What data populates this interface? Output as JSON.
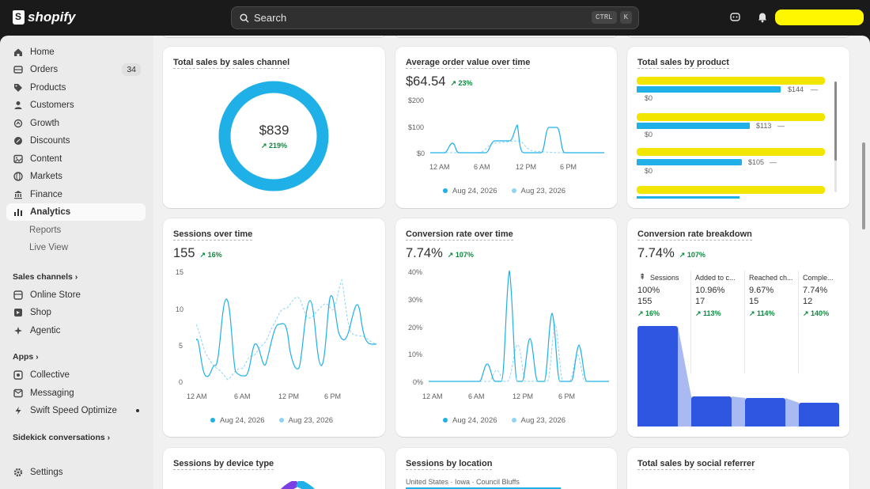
{
  "brand": "shopify",
  "search": {
    "label": "Search",
    "kbd1": "CTRL",
    "kbd2": "K"
  },
  "sidebar": {
    "items": [
      {
        "label": "Home",
        "icon": "home-icon"
      },
      {
        "label": "Orders",
        "icon": "orders-icon",
        "badge": "34"
      },
      {
        "label": "Products",
        "icon": "tag-icon"
      },
      {
        "label": "Customers",
        "icon": "person-icon"
      },
      {
        "label": "Growth",
        "icon": "growth-icon"
      },
      {
        "label": "Discounts",
        "icon": "discount-icon"
      },
      {
        "label": "Content",
        "icon": "content-icon"
      },
      {
        "label": "Markets",
        "icon": "globe-icon"
      },
      {
        "label": "Finance",
        "icon": "bank-icon"
      },
      {
        "label": "Analytics",
        "icon": "chart-icon"
      },
      {
        "label": "Reports"
      },
      {
        "label": "Live View"
      }
    ],
    "sales_channels_title": "Sales channels",
    "channels": [
      {
        "label": "Online Store",
        "icon": "store-icon"
      },
      {
        "label": "Shop",
        "icon": "shop-icon"
      },
      {
        "label": "Agentic",
        "icon": "agentic-icon"
      }
    ],
    "apps_title": "Apps",
    "apps": [
      {
        "label": "Collective",
        "icon": "collective-icon"
      },
      {
        "label": "Messaging",
        "icon": "message-icon"
      },
      {
        "label": "Swift Speed Optimize",
        "icon": "bolt-icon"
      }
    ],
    "sidekick_title": "Sidekick conversations",
    "settings": "Settings"
  },
  "cards": {
    "sales_channel": {
      "title": "Total sales by sales channel",
      "value": "$839",
      "delta": "219%"
    },
    "aov": {
      "title": "Average order value over time",
      "value": "$64.54",
      "delta": "23%",
      "y_ticks": [
        "$200",
        "$100",
        "$0"
      ],
      "x_ticks": [
        "12 AM",
        "6 AM",
        "12 PM",
        "6 PM"
      ],
      "legend": [
        "Aug 24, 2026",
        "Aug 23, 2026"
      ]
    },
    "by_product": {
      "title": "Total sales by product",
      "rows": [
        {
          "value": "$144",
          "prev": "$0",
          "fill": 1.0
        },
        {
          "value": "$113",
          "prev": "$0",
          "fill": 0.78
        },
        {
          "value": "$105",
          "prev": "$0",
          "fill": 0.73
        }
      ]
    },
    "sessions": {
      "title": "Sessions over time",
      "value": "155",
      "delta": "16%",
      "y_ticks": [
        "15",
        "10",
        "5",
        "0"
      ],
      "x_ticks": [
        "12 AM",
        "6 AM",
        "12 PM",
        "6 PM"
      ],
      "legend": [
        "Aug 24, 2026",
        "Aug 23, 2026"
      ]
    },
    "conversion": {
      "title": "Conversion rate over time",
      "value": "7.74%",
      "delta": "107%",
      "y_ticks": [
        "40%",
        "30%",
        "20%",
        "10%",
        "0%"
      ],
      "x_ticks": [
        "12 AM",
        "6 AM",
        "12 PM",
        "6 PM"
      ],
      "legend": [
        "Aug 24, 2026",
        "Aug 23, 2026"
      ]
    },
    "breakdown": {
      "title": "Conversion rate breakdown",
      "value": "7.74%",
      "delta": "107%",
      "steps": [
        {
          "label": "Sessions",
          "pct": "100%",
          "count": "155",
          "delta": "16%",
          "level": 1.0
        },
        {
          "label": "Added to c...",
          "pct": "10.96%",
          "count": "17",
          "delta": "113%",
          "level": 0.3
        },
        {
          "label": "Reached ch...",
          "pct": "9.67%",
          "count": "15",
          "delta": "114%",
          "level": 0.28
        },
        {
          "label": "Comple...",
          "pct": "7.74%",
          "count": "12",
          "delta": "140%",
          "level": 0.24
        }
      ]
    },
    "device": {
      "title": "Sessions by device type"
    },
    "location": {
      "title": "Sessions by location",
      "first_row": "United States · Iowa · Council Bluffs"
    },
    "social": {
      "title": "Total sales by social referrer"
    }
  },
  "colors": {
    "accent": "#1fb0e8",
    "accent_light": "#8fd3f2",
    "funnel": "#2f56e0",
    "positive": "#0b8a3d"
  }
}
